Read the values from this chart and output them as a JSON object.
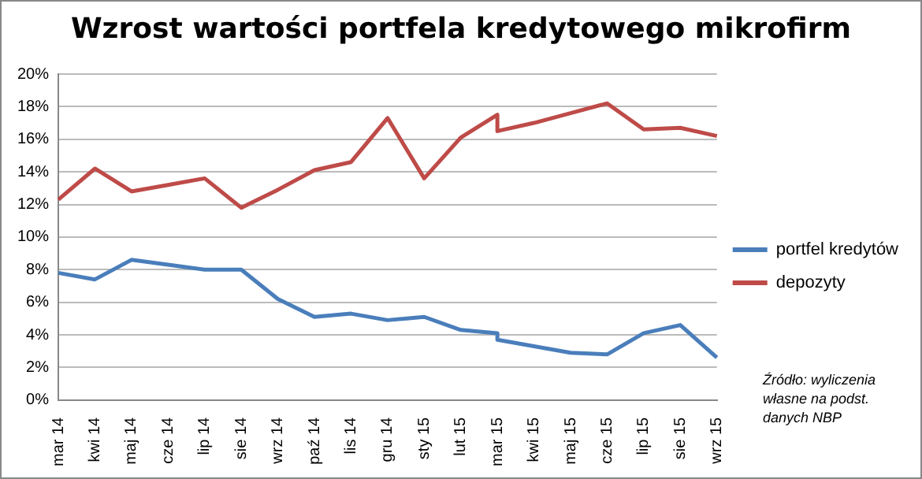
{
  "chart_data": {
    "type": "line",
    "title": "Wzrost wartości portfela kredytowego mikrofirm",
    "categories": [
      "mar 14",
      "kwi 14",
      "maj 14",
      "cze 14",
      "lip 14",
      "sie 14",
      "wrz 14",
      "paź 14",
      "lis 14",
      "gru 14",
      "sty 15",
      "lut 15",
      "mar 15",
      "kwi 15",
      "maj 15",
      "cze 15",
      "lip 15",
      "sie 15",
      "wrz 15"
    ],
    "series": [
      {
        "name": "portfel kredytów",
        "color": "#4a7ebb",
        "x": [
          "mar 14",
          "kwi 14",
          "maj 14",
          "cze 14",
          "lip 14",
          "sie 14",
          "wrz 14",
          "paź 14",
          "lis 14",
          "gru 14",
          "sty 15",
          "lut 15",
          "mar 15",
          "mar 15",
          "kwi 15",
          "maj 15",
          "cze 15",
          "lip 15",
          "sie 15",
          "wrz 15"
        ],
        "values": [
          7.8,
          7.4,
          8.6,
          8.3,
          8.0,
          8.0,
          6.2,
          5.1,
          5.3,
          4.9,
          5.1,
          4.3,
          4.1,
          3.7,
          3.3,
          2.9,
          2.8,
          4.1,
          4.6,
          2.6
        ]
      },
      {
        "name": "depozyty",
        "color": "#be4b48",
        "x": [
          "mar 14",
          "kwi 14",
          "maj 14",
          "cze 14",
          "lip 14",
          "sie 14",
          "wrz 14",
          "paź 14",
          "lis 14",
          "gru 14",
          "sty 15",
          "lut 15",
          "mar 15",
          "mar 15",
          "kwi 15",
          "maj 15",
          "cze 15",
          "lip 15",
          "sie 15",
          "wrz 15"
        ],
        "values": [
          12.3,
          14.2,
          12.8,
          13.2,
          13.6,
          11.8,
          12.9,
          14.1,
          14.6,
          17.3,
          13.6,
          16.1,
          17.5,
          16.5,
          17.0,
          17.6,
          18.2,
          16.6,
          16.7,
          16.2
        ]
      }
    ],
    "ylim": [
      0,
      20
    ],
    "yticks": [
      {
        "value": 0,
        "label": "0%"
      },
      {
        "value": 2,
        "label": "2%"
      },
      {
        "value": 4,
        "label": "4%"
      },
      {
        "value": 6,
        "label": "6%"
      },
      {
        "value": 8,
        "label": "8%"
      },
      {
        "value": 10,
        "label": "10%"
      },
      {
        "value": 12,
        "label": "12%"
      },
      {
        "value": 14,
        "label": "14%"
      },
      {
        "value": 16,
        "label": "16%"
      },
      {
        "value": 18,
        "label": "18%"
      },
      {
        "value": 20,
        "label": "20%"
      }
    ],
    "grid": "y",
    "legend": "right",
    "marker": "none",
    "line_style": "solid",
    "annotations": [
      "Źródło: wyliczenia własne na podst. danych NBP"
    ]
  }
}
